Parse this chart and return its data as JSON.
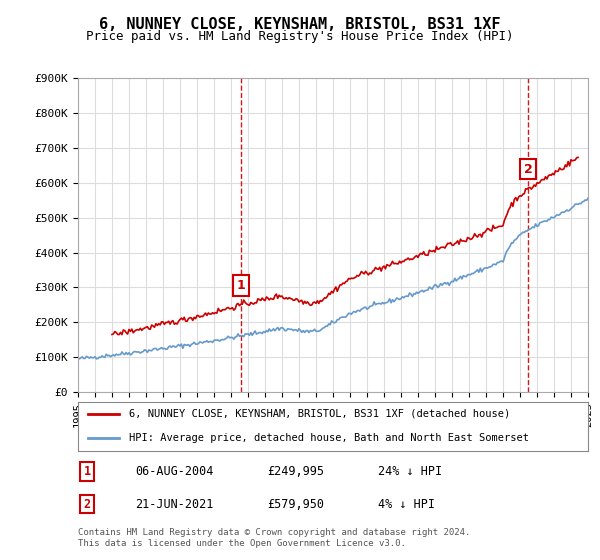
{
  "title": "6, NUNNEY CLOSE, KEYNSHAM, BRISTOL, BS31 1XF",
  "subtitle": "Price paid vs. HM Land Registry's House Price Index (HPI)",
  "legend_property": "6, NUNNEY CLOSE, KEYNSHAM, BRISTOL, BS31 1XF (detached house)",
  "legend_hpi": "HPI: Average price, detached house, Bath and North East Somerset",
  "transaction1_label": "1",
  "transaction1_date": "06-AUG-2004",
  "transaction1_price": "£249,995",
  "transaction1_hpi": "24% ↓ HPI",
  "transaction2_label": "2",
  "transaction2_date": "21-JUN-2021",
  "transaction2_price": "£579,950",
  "transaction2_hpi": "4% ↓ HPI",
  "footer": "Contains HM Land Registry data © Crown copyright and database right 2024.\nThis data is licensed under the Open Government Licence v3.0.",
  "property_color": "#cc0000",
  "hpi_color": "#6699cc",
  "marker1_x_year": 2004.6,
  "marker2_x_year": 2021.47,
  "ylim": [
    0,
    900000
  ],
  "xlim_start": 1995,
  "xlim_end": 2025,
  "yticks": [
    0,
    100000,
    200000,
    300000,
    400000,
    500000,
    600000,
    700000,
    800000,
    900000
  ],
  "ytick_labels": [
    "£0",
    "£100K",
    "£200K",
    "£300K",
    "£400K",
    "£500K",
    "£600K",
    "£700K",
    "£800K",
    "£900K"
  ],
  "background_color": "#ffffff",
  "grid_color": "#dddddd"
}
